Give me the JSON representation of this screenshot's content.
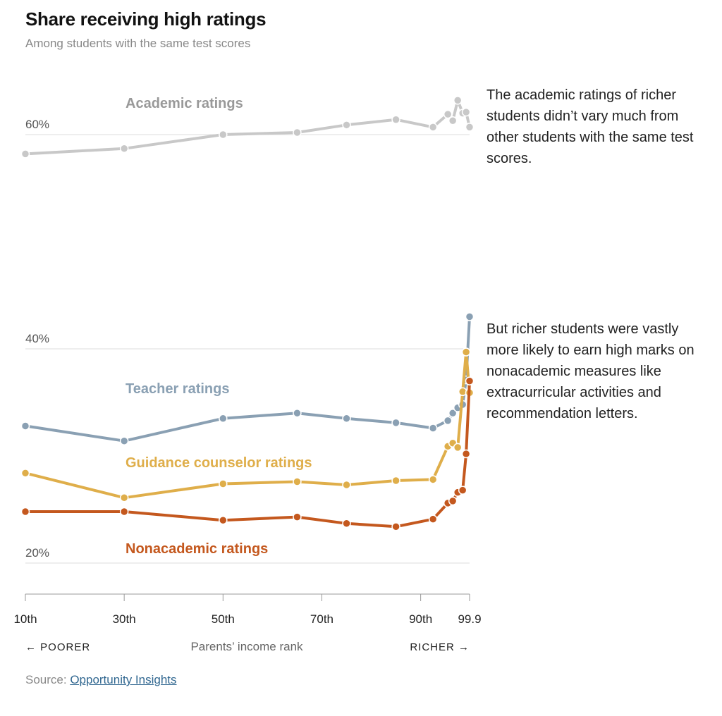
{
  "title": "Share receiving high ratings",
  "subtitle": "Among students with the same test scores",
  "annotations": {
    "academic": "The academic ratings of richer students didn’t vary much from other students with the same test scores.",
    "nonacademic": "But richer students were vastly more likely to earn high marks on nonacademic measures like extracurricular activities and recommendation letters."
  },
  "source": {
    "prefix": "Source: ",
    "link_text": "Opportunity Insights"
  },
  "chart_data": {
    "type": "line",
    "xlabel": "Parents’ income rank",
    "x_left_label": "← POORER",
    "x_right_label": "RICHER →",
    "xlim": [
      10,
      99.9
    ],
    "ylim": [
      17,
      69
    ],
    "grid": true,
    "y_ticks": [
      {
        "value": 60,
        "label": "60%"
      },
      {
        "value": 40,
        "label": "40%"
      },
      {
        "value": 20,
        "label": "20%"
      }
    ],
    "x_ticks": [
      {
        "value": 10,
        "label": "10th"
      },
      {
        "value": 30,
        "label": "30th"
      },
      {
        "value": 50,
        "label": "50th"
      },
      {
        "value": 70,
        "label": "70th"
      },
      {
        "value": 90,
        "label": "90th"
      },
      {
        "value": 99.9,
        "label": "99.9"
      }
    ],
    "x": [
      10,
      30,
      50,
      65,
      75,
      85,
      92.5,
      95.5,
      96.5,
      97.5,
      98.5,
      99.2,
      99.9
    ],
    "series": [
      {
        "name": "Academic ratings",
        "color": "#c8c8c8",
        "values": [
          58.2,
          58.7,
          60.0,
          60.2,
          60.9,
          61.4,
          60.7,
          61.9,
          61.3,
          63.2,
          62.0,
          62.1,
          60.7
        ]
      },
      {
        "name": "Teacher ratings",
        "color": "#8aa0b3",
        "values": [
          32.8,
          31.4,
          33.5,
          34.0,
          33.5,
          33.1,
          32.6,
          33.3,
          34.0,
          34.5,
          34.8,
          37.1,
          43.0
        ]
      },
      {
        "name": "Guidance counselor ratings",
        "color": "#dfae4a",
        "values": [
          28.4,
          26.1,
          27.4,
          27.6,
          27.3,
          27.7,
          27.8,
          30.9,
          31.2,
          30.8,
          36.0,
          39.7,
          35.9
        ]
      },
      {
        "name": "Nonacademic ratings",
        "color": "#c4581e",
        "values": [
          24.8,
          24.8,
          24.0,
          24.3,
          23.7,
          23.4,
          24.1,
          25.6,
          25.8,
          26.6,
          26.8,
          30.2,
          37.0
        ]
      }
    ]
  }
}
